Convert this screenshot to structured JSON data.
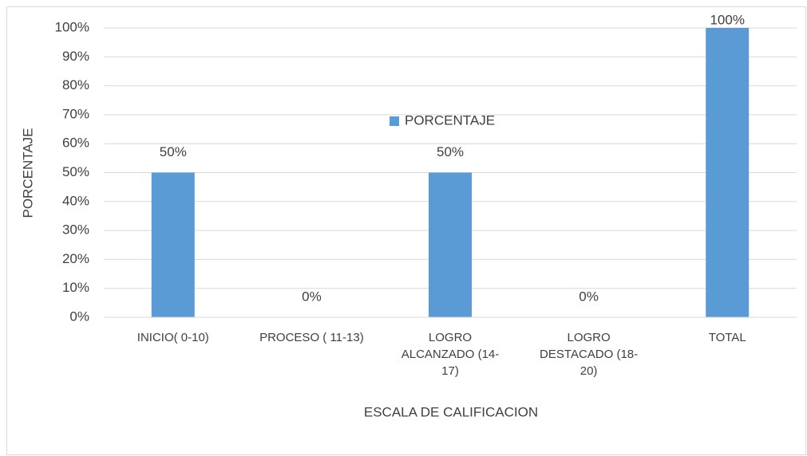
{
  "chart_data": {
    "type": "bar",
    "categories": [
      "INICIO( 0-10)",
      "PROCESO ( 11-13)",
      "LOGRO ALCANZADO (14-17)",
      "LOGRO DESTACADO (18-20)",
      "TOTAL"
    ],
    "series": [
      {
        "name": "PORCENTAJE",
        "color": "#5b9bd5",
        "values": [
          50,
          0,
          50,
          0,
          100
        ],
        "value_labels": [
          "50%",
          "0%",
          "50%",
          "0%",
          "100%"
        ]
      }
    ],
    "xlabel": "ESCALA DE CALIFICACION",
    "ylabel": "PORCENTAJE",
    "ylim": [
      0,
      100
    ],
    "yticks": [
      {
        "value": 0,
        "label": "0%"
      },
      {
        "value": 10,
        "label": "10%"
      },
      {
        "value": 20,
        "label": "20%"
      },
      {
        "value": 30,
        "label": "30%"
      },
      {
        "value": 40,
        "label": "40%"
      },
      {
        "value": 50,
        "label": "50%"
      },
      {
        "value": 60,
        "label": "60%"
      },
      {
        "value": 70,
        "label": "70%"
      },
      {
        "value": 80,
        "label": "80%"
      },
      {
        "value": 90,
        "label": "90%"
      },
      {
        "value": 100,
        "label": "100%"
      }
    ],
    "grid": true,
    "legend": "center"
  }
}
